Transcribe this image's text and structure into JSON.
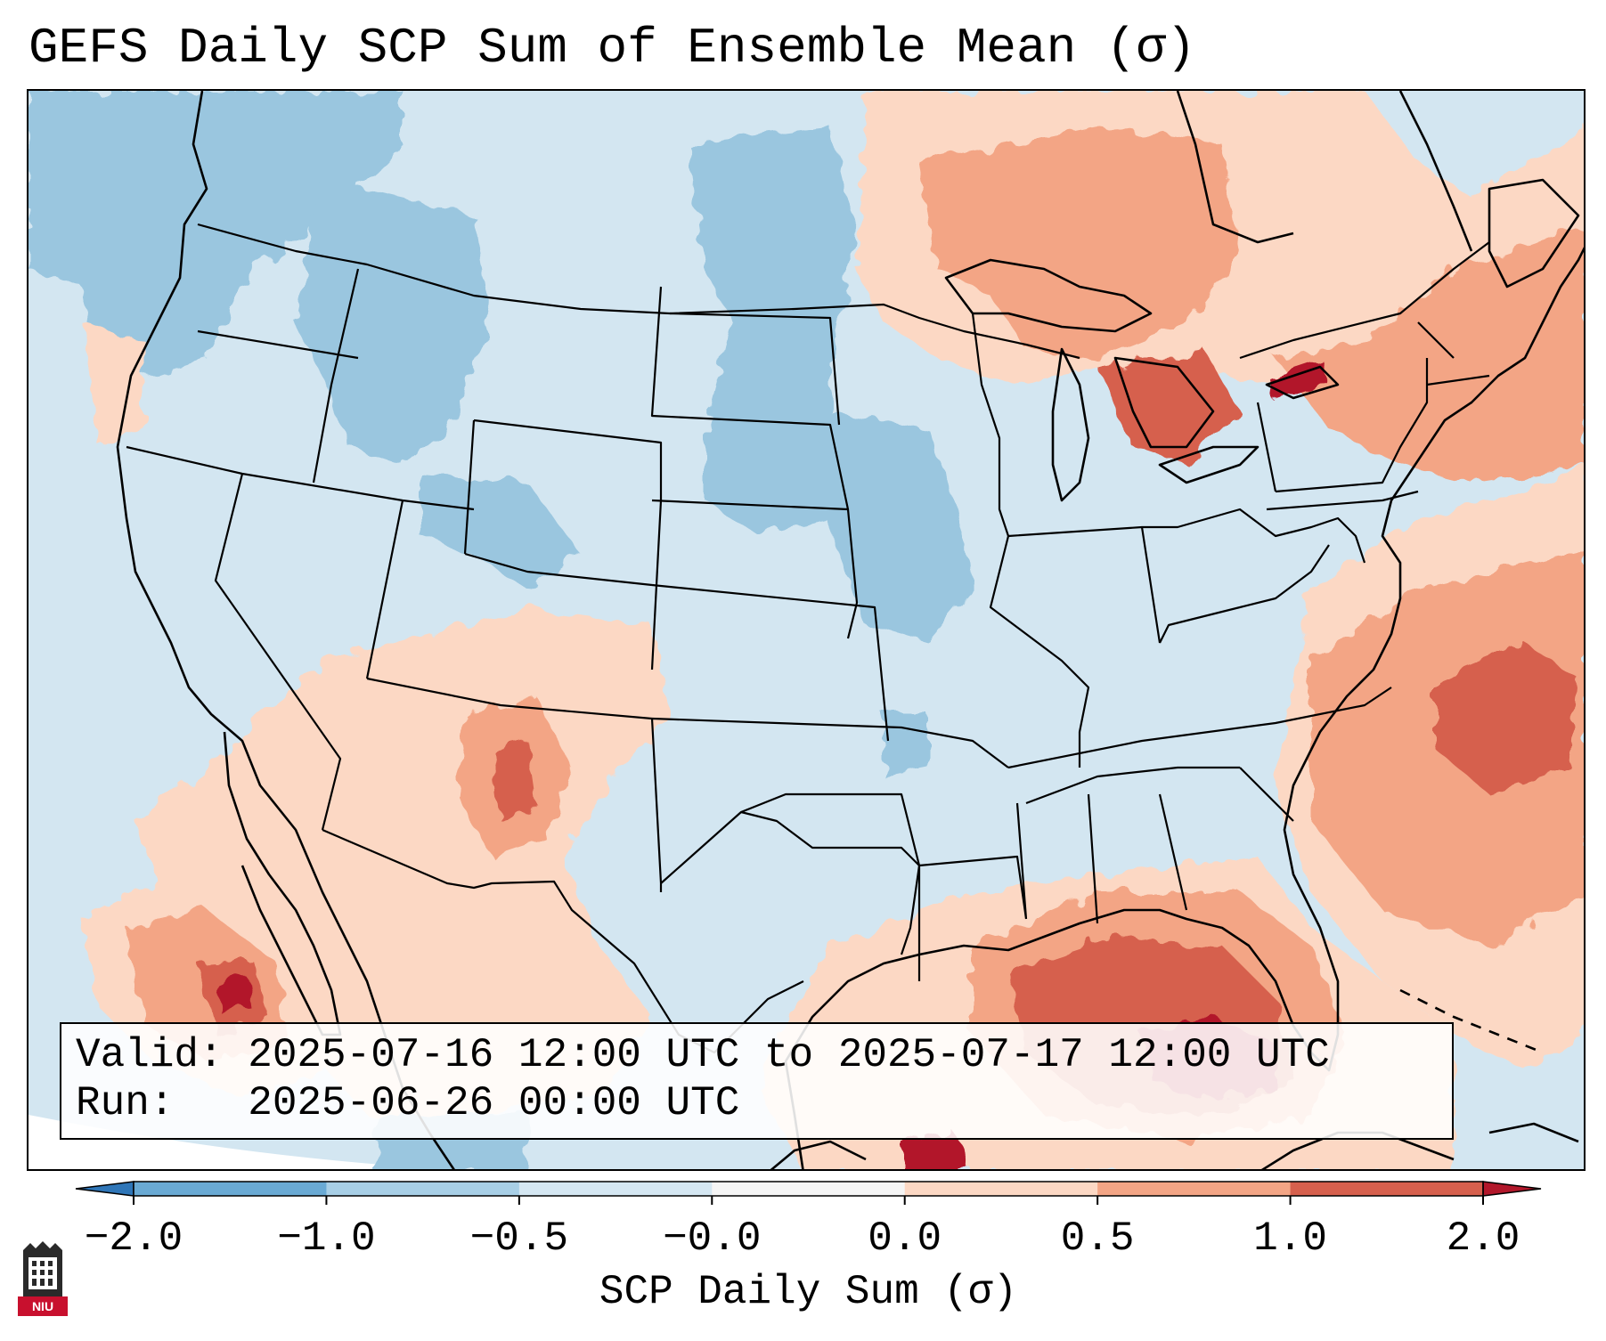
{
  "title": "GEFS Daily SCP Sum of Ensemble Mean (σ)",
  "info": {
    "valid_line": "Valid: 2025-07-16 12:00 UTC to 2025-07-17 12:00 UTC",
    "run_line": "Run:   2025-06-26 00:00 UTC"
  },
  "colorbar": {
    "label": "SCP Daily Sum (σ)",
    "ticks": [
      "−2.0",
      "−1.0",
      "−0.5",
      "−0.0",
      "0.0",
      "0.5",
      "1.0",
      "2.0"
    ],
    "colors": [
      "#2f76b8",
      "#6aaad4",
      "#a8cfe6",
      "#d5e7f2",
      "#f5f5f5",
      "#fcd8c4",
      "#f3a585",
      "#d6604d",
      "#b2182b"
    ]
  },
  "map": {
    "background_color": "#d3e6f1",
    "anomaly_regions": [
      {
        "name": "northwest-pacific",
        "level": "negative-moderate"
      },
      {
        "name": "idaho-montana",
        "level": "negative-moderate"
      },
      {
        "name": "dakotas-nebraska",
        "level": "negative-moderate"
      },
      {
        "name": "iowa-missouri",
        "level": "negative-moderate"
      },
      {
        "name": "ontario-great-lakes",
        "level": "positive-moderate"
      },
      {
        "name": "lake-ontario",
        "level": "positive-strong"
      },
      {
        "name": "new-england",
        "level": "positive-moderate"
      },
      {
        "name": "western-atlantic",
        "level": "positive-strong"
      },
      {
        "name": "gulf-of-mexico",
        "level": "positive-strong"
      },
      {
        "name": "eastern-gulf-florida",
        "level": "positive-extreme"
      },
      {
        "name": "eastern-pacific-baja",
        "level": "positive-extreme"
      },
      {
        "name": "four-corners",
        "level": "positive-strong"
      }
    ]
  },
  "logo": {
    "text": "NIU",
    "icon": "niu-tower-icon"
  }
}
